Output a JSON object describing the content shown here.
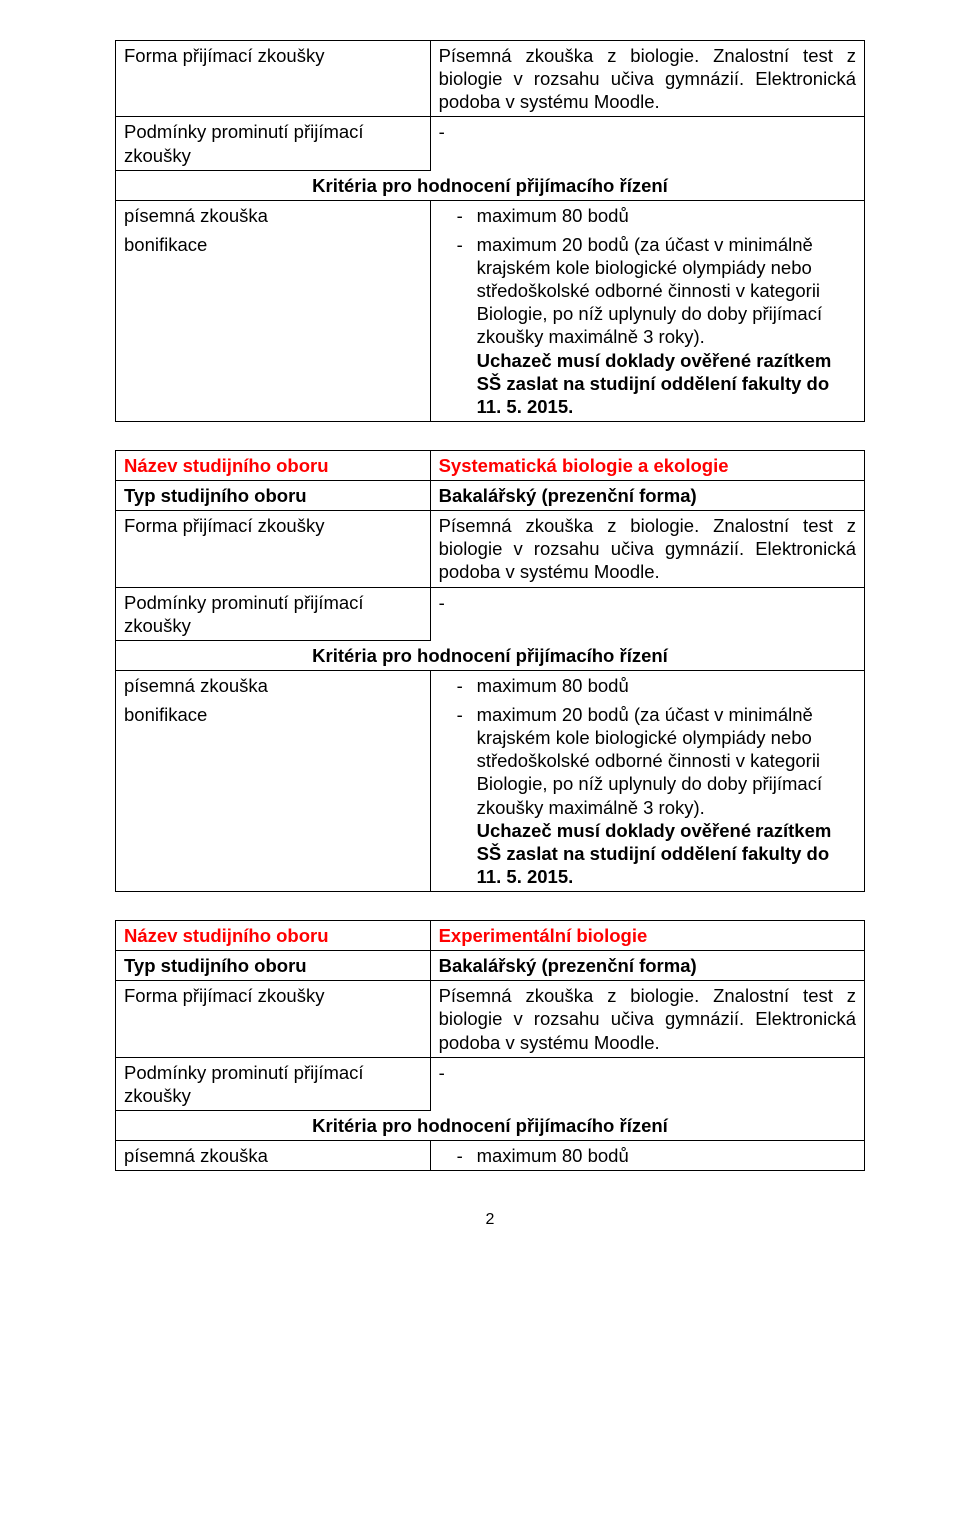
{
  "table1": {
    "row1_label": "Forma přijímací zkoušky",
    "row1_value": "Písemná zkouška z biologie. Znalostní test z biologie v rozsahu učiva gymnázií. Elektronická podoba v systému Moodle.",
    "row2_label": "Podmínky prominutí přijímací zkoušky",
    "row2_value": "-",
    "criteria_header": "Kritéria pro hodnocení přijímacího řízení",
    "row3_label": "písemná zkouška",
    "row3_value": "maximum 80 bodů",
    "row4_label": "bonifikace",
    "row4_first": "maximum 20 bodů (za účast v minimálně",
    "row4_body": "krajském kole biologické olympiády nebo středoškolské odborné činnosti v kategorii Biologie, po níž uplynuly do doby přijímací zkoušky maximálně 3 roky).",
    "row4_bold": "Uchazeč musí doklady ověřené razítkem SŠ zaslat na studijní oddělení fakulty do 11. 5. 2015."
  },
  "table2": {
    "name_label": "Název studijního oboru",
    "name_value": "Systematická biologie a ekologie",
    "type_label": "Typ studijního oboru",
    "type_value": "Bakalářský (prezenční forma)",
    "form_label": "Forma přijímací zkoušky",
    "form_value": "Písemná zkouška z biologie. Znalostní test z biologie v rozsahu učiva gymnázií. Elektronická podoba v systému Moodle.",
    "cond_label": "Podmínky prominutí přijímací zkoušky",
    "cond_value": "-",
    "criteria_header": "Kritéria pro hodnocení přijímacího řízení",
    "r1_label": "písemná zkouška",
    "r1_value": "maximum 80 bodů",
    "r2_label": "bonifikace",
    "r2_first": "maximum 20 bodů (za účast v minimálně",
    "r2_body": "krajském kole biologické olympiády nebo středoškolské odborné činnosti v kategorii Biologie, po níž uplynuly do doby přijímací zkoušky maximálně 3 roky).",
    "r2_bold": "Uchazeč musí doklady ověřené razítkem SŠ zaslat na studijní oddělení fakulty do 11. 5. 2015."
  },
  "table3": {
    "name_label": "Název studijního oboru",
    "name_value": "Experimentální biologie",
    "type_label": "Typ studijního oboru",
    "type_value": "Bakalářský (prezenční forma)",
    "form_label": "Forma přijímací zkoušky",
    "form_value": "Písemná zkouška z biologie. Znalostní test z biologie v rozsahu učiva gymnázií. Elektronická podoba v systému Moodle.",
    "cond_label": "Podmínky prominutí přijímací zkoušky",
    "cond_value": "-",
    "criteria_header": "Kritéria pro hodnocení přijímacího řízení",
    "r1_label": "písemná zkouška",
    "r1_value": "maximum 80 bodů"
  },
  "page_number": "2"
}
